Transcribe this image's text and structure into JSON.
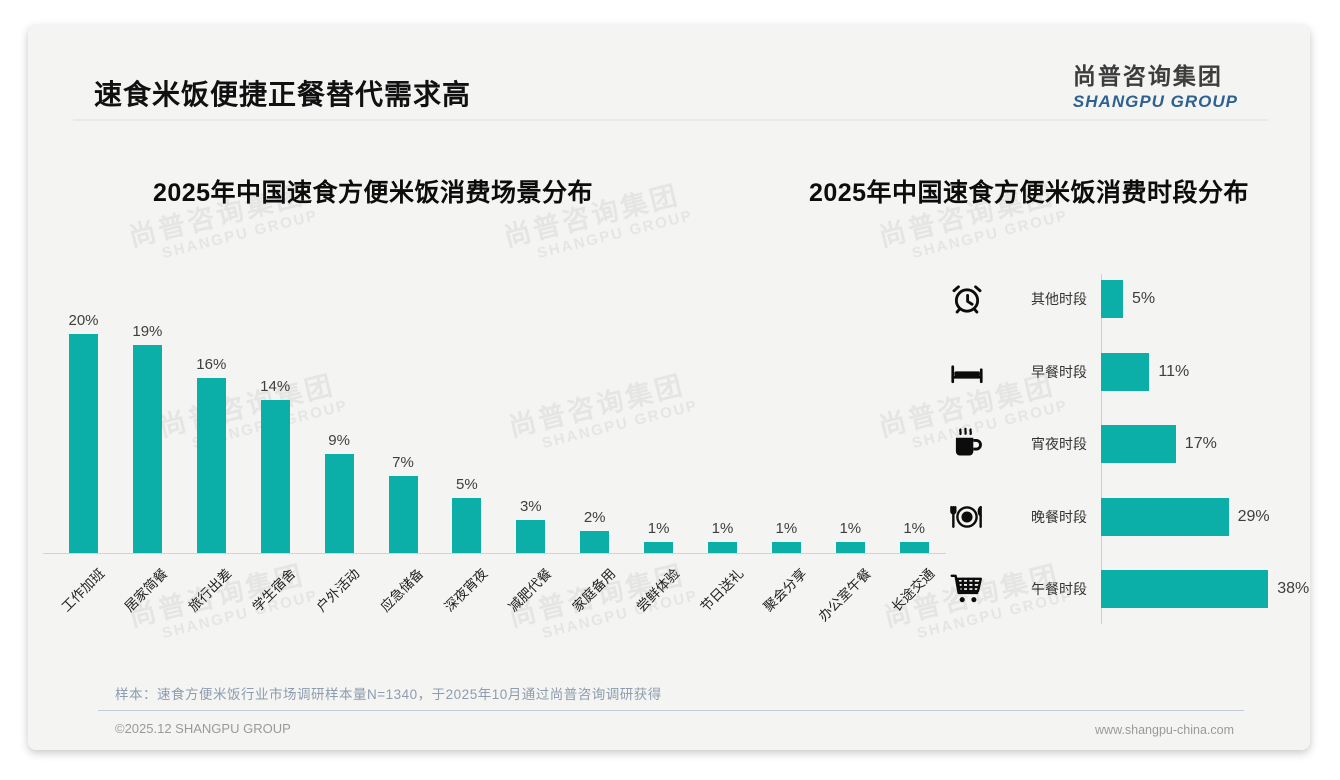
{
  "page": {
    "title": "速食米饭便捷正餐替代需求高",
    "logo": {
      "zh": "尚普咨询集团",
      "en": "SHANGPU GROUP"
    },
    "watermark": {
      "zh": "尚普咨询集团",
      "en": "SHANGPU GROUP"
    },
    "footnote": "样本：速食方便米饭行业市场调研样本量N=1340，于2025年10月通过尚普咨询调研获得",
    "footer": {
      "left": "©2025.12 SHANGPU GROUP",
      "right": "www.shangpu-china.com"
    }
  },
  "colors": {
    "accent_teal": "#0bafa8",
    "logo_blue": "#2e6090",
    "footnote_blue_gray": "#8d9cae",
    "title_black": "#111111",
    "card_background": "#f4f4f3"
  },
  "chart_data": [
    {
      "type": "bar",
      "orientation": "vertical",
      "title": "2025年中国速食方便米饭消费场景分布",
      "categories": [
        "工作加班",
        "居家简餐",
        "旅行出差",
        "学生宿舍",
        "户外活动",
        "应急储备",
        "深夜宵夜",
        "减肥代餐",
        "家庭备用",
        "尝鲜体验",
        "节日送礼",
        "聚会分享",
        "办公室午餐",
        "长途交通"
      ],
      "values": [
        20,
        19,
        16,
        14,
        9,
        7,
        5,
        3,
        2,
        1,
        1,
        1,
        1,
        1
      ],
      "unit": "%",
      "ylim": [
        0,
        20
      ],
      "grid": false,
      "bar_color": "#0bafa8",
      "value_labels_shown": true
    },
    {
      "type": "bar",
      "orientation": "horizontal",
      "title": "2025年中国速食方便米饭消费时段分布",
      "categories": [
        "其他时段",
        "早餐时段",
        "宵夜时段",
        "晚餐时段",
        "午餐时段"
      ],
      "values": [
        5,
        11,
        17,
        29,
        38
      ],
      "icons": [
        "alarm-clock-icon",
        "bed-icon",
        "coffee-icon",
        "plate-cutlery-icon",
        "shopping-cart-icon"
      ],
      "unit": "%",
      "xlim": [
        0,
        40
      ],
      "grid": false,
      "bar_color": "#0bafa8",
      "value_labels_shown": true
    }
  ]
}
